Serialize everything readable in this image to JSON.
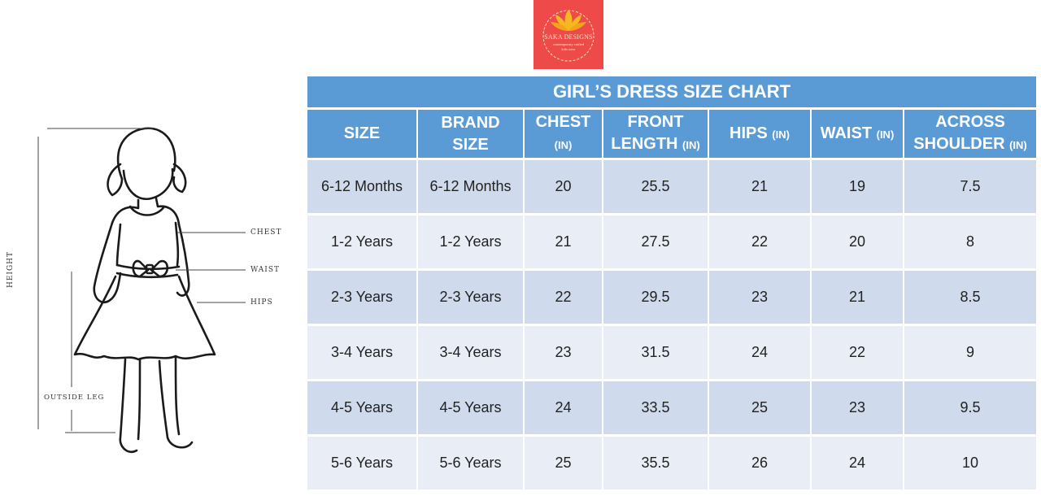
{
  "logo": {
    "brand": "SAKA DESIGNS",
    "tagline_1": "contemporary crafted",
    "tagline_2": "kids wear"
  },
  "figure": {
    "labels": {
      "chest": "CHEST",
      "waist": "WAIST",
      "hips": "HIPS",
      "height": "HEIGHT",
      "outside_leg": "OUTSIDE LEG"
    }
  },
  "table": {
    "title": "GIRL’S DRESS SIZE CHART",
    "headers": [
      {
        "line1": "SIZE",
        "line2": "",
        "unit": ""
      },
      {
        "line1": "BRAND",
        "line2": "SIZE",
        "unit": ""
      },
      {
        "line1": "CHEST",
        "line2": "",
        "unit": "(IN)"
      },
      {
        "line1": "FRONT",
        "line2": "LENGTH",
        "unit": "(IN)"
      },
      {
        "line1": "HIPS",
        "line2": "",
        "unit": "(IN)"
      },
      {
        "line1": "WAIST",
        "line2": "",
        "unit": "(IN)"
      },
      {
        "line1": "ACROSS",
        "line2": "SHOULDER",
        "unit": "(IN)"
      }
    ],
    "rows": [
      [
        "6-12 Months",
        "6-12 Months",
        "20",
        "25.5",
        "21",
        "19",
        "7.5"
      ],
      [
        "1-2 Years",
        "1-2 Years",
        "21",
        "27.5",
        "22",
        "20",
        "8"
      ],
      [
        "2-3 Years",
        "2-3 Years",
        "22",
        "29.5",
        "23",
        "21",
        "8.5"
      ],
      [
        "3-4 Years",
        "3-4 Years",
        "23",
        "31.5",
        "24",
        "22",
        "9"
      ],
      [
        "4-5 Years",
        "4-5 Years",
        "24",
        "33.5",
        "25",
        "23",
        "9.5"
      ],
      [
        "5-6 Years",
        "5-6 Years",
        "25",
        "35.5",
        "26",
        "24",
        "10"
      ]
    ]
  }
}
